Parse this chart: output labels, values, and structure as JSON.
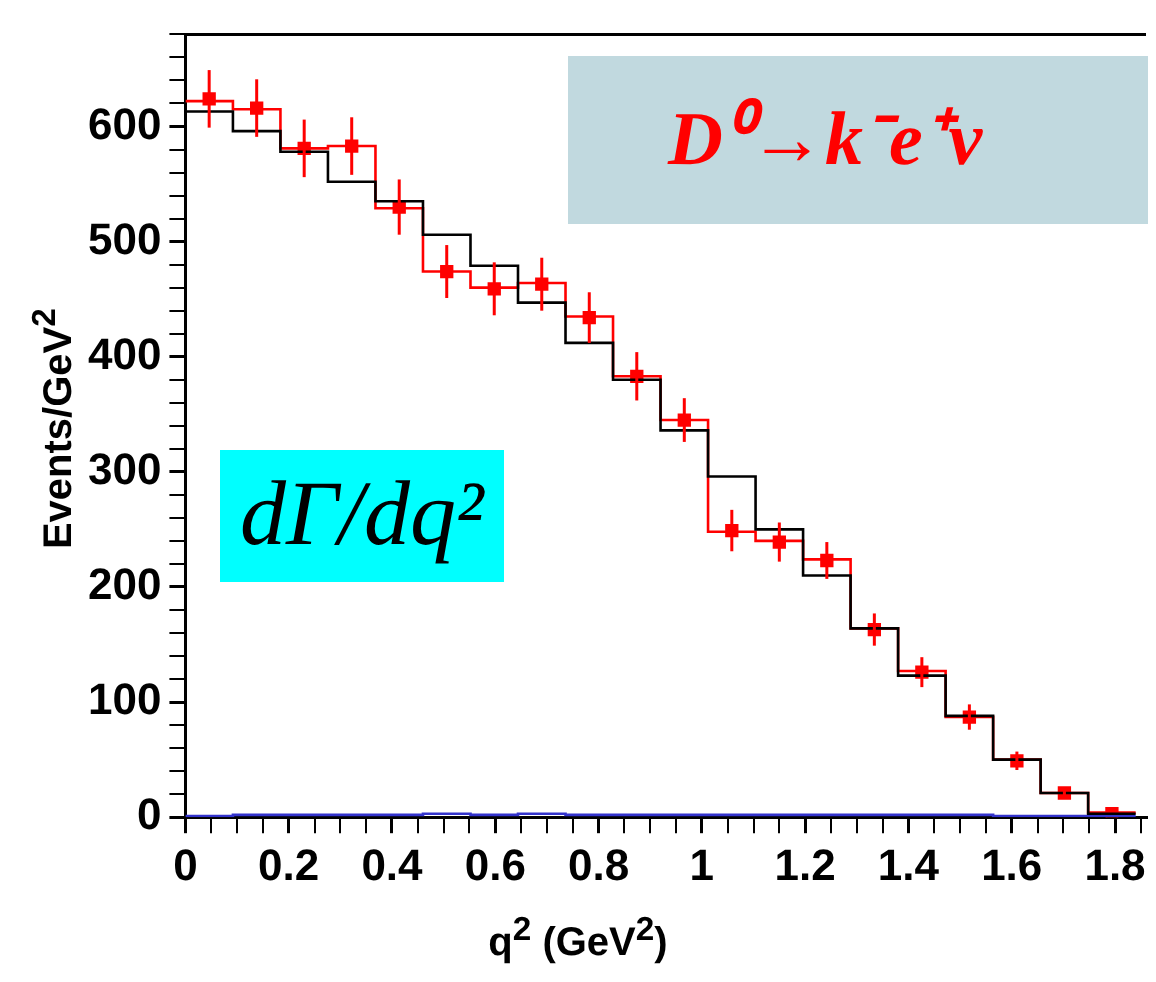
{
  "chart_data": {
    "type": "histogram",
    "xlabel": "q$^{2}$ (GeV$^{2}$)",
    "ylabel": "Events/GeV$^{2}$",
    "annotations": [
      "dΓ/dq²",
      "D⁰→k⁻e⁺ν"
    ],
    "bins": [
      0,
      0.092,
      0.184,
      0.276,
      0.368,
      0.46,
      0.552,
      0.644,
      0.736,
      0.828,
      0.92,
      1.012,
      1.104,
      1.196,
      1.288,
      1.38,
      1.472,
      1.564,
      1.656,
      1.748,
      1.84
    ],
    "series": [
      {
        "type": "histogram",
        "color": "#000000",
        "values": [
          613,
          596,
          578,
          552,
          535,
          506,
          479,
          447,
          412,
          380,
          336,
          296,
          250,
          210,
          164,
          123,
          88,
          50,
          21,
          3
        ]
      },
      {
        "type": "histogram",
        "color": "#ff0000",
        "values": [
          622,
          615,
          581,
          583,
          529,
          474,
          460,
          464,
          435,
          383,
          345,
          248,
          240,
          224,
          164,
          127,
          87,
          50,
          21,
          4
        ]
      },
      {
        "type": "histogram",
        "color": "#3333cc",
        "values": [
          1,
          2,
          2,
          2,
          2,
          3,
          2,
          3,
          2,
          2,
          2,
          2,
          2,
          2,
          2,
          2,
          2,
          1,
          1,
          1
        ]
      },
      {
        "type": "scatter",
        "color": "#ff0000",
        "marker": "square",
        "x": [
          0.046,
          0.138,
          0.23,
          0.322,
          0.414,
          0.506,
          0.598,
          0.69,
          0.782,
          0.874,
          0.966,
          1.058,
          1.15,
          1.242,
          1.334,
          1.426,
          1.518,
          1.61,
          1.702,
          1.794
        ],
        "values": [
          624,
          616,
          581,
          583,
          530,
          474,
          459,
          463,
          434,
          383,
          345,
          249,
          239,
          223,
          163,
          126,
          87,
          49,
          21,
          3
        ],
        "errors": [
          25,
          25,
          25,
          25,
          24,
          23,
          23,
          23,
          22,
          21,
          19,
          18,
          17,
          16,
          14,
          13,
          11,
          8,
          5,
          null
        ]
      }
    ],
    "xlim": [
      0,
      1.86
    ],
    "xticks": [
      0,
      {
        "value": 0.05,
        "label": null
      },
      {
        "value": 0.1,
        "label": null
      },
      {
        "value": 0.15,
        "label": null
      },
      0.2,
      {
        "value": 0.25,
        "label": null
      },
      {
        "value": 0.3,
        "label": null
      },
      {
        "value": 0.35,
        "label": null
      },
      0.4,
      {
        "value": 0.45,
        "label": null
      },
      {
        "value": 0.5,
        "label": null
      },
      {
        "value": 0.55,
        "label": null
      },
      0.6,
      {
        "value": 0.65,
        "label": null
      },
      {
        "value": 0.7,
        "label": null
      },
      {
        "value": 0.75,
        "label": null
      },
      0.8,
      {
        "value": 0.85,
        "label": null
      },
      {
        "value": 0.9,
        "label": null
      },
      {
        "value": 0.95,
        "label": null
      },
      1,
      {
        "value": 1.05,
        "label": null
      },
      {
        "value": 1.1,
        "label": null
      },
      {
        "value": 1.15,
        "label": null
      },
      1.2,
      {
        "value": 1.25,
        "label": null
      },
      {
        "value": 1.3,
        "label": null
      },
      {
        "value": 1.35,
        "label": null
      },
      1.4,
      {
        "value": 1.45,
        "label": null
      },
      {
        "value": 1.5,
        "label": null
      },
      {
        "value": 1.55,
        "label": null
      },
      1.6,
      {
        "value": 1.65,
        "label": null
      },
      {
        "value": 1.7,
        "label": null
      },
      {
        "value": 1.75,
        "label": null
      },
      1.8,
      {
        "value": 1.85,
        "label": null
      }
    ],
    "ylim": [
      0,
      680
    ],
    "yticks": [
      0,
      {
        "value": 20,
        "label": null
      },
      {
        "value": 40,
        "label": null
      },
      {
        "value": 60,
        "label": null
      },
      {
        "value": 80,
        "label": null
      },
      100,
      {
        "value": 120,
        "label": null
      },
      {
        "value": 140,
        "label": null
      },
      {
        "value": 160,
        "label": null
      },
      {
        "value": 180,
        "label": null
      },
      200,
      {
        "value": 220,
        "label": null
      },
      {
        "value": 240,
        "label": null
      },
      {
        "value": 260,
        "label": null
      },
      {
        "value": 280,
        "label": null
      },
      300,
      {
        "value": 320,
        "label": null
      },
      {
        "value": 340,
        "label": null
      },
      {
        "value": 360,
        "label": null
      },
      {
        "value": 380,
        "label": null
      },
      400,
      {
        "value": 420,
        "label": null
      },
      {
        "value": 440,
        "label": null
      },
      {
        "value": 460,
        "label": null
      },
      {
        "value": 480,
        "label": null
      },
      500,
      {
        "value": 520,
        "label": null
      },
      {
        "value": 540,
        "label": null
      },
      {
        "value": 560,
        "label": null
      },
      {
        "value": 580,
        "label": null
      },
      600,
      {
        "value": 620,
        "label": null
      },
      {
        "value": 640,
        "label": null
      },
      {
        "value": 660,
        "label": null
      },
      {
        "value": 680,
        "label": null
      }
    ],
    "grid": false,
    "legend": false
  }
}
